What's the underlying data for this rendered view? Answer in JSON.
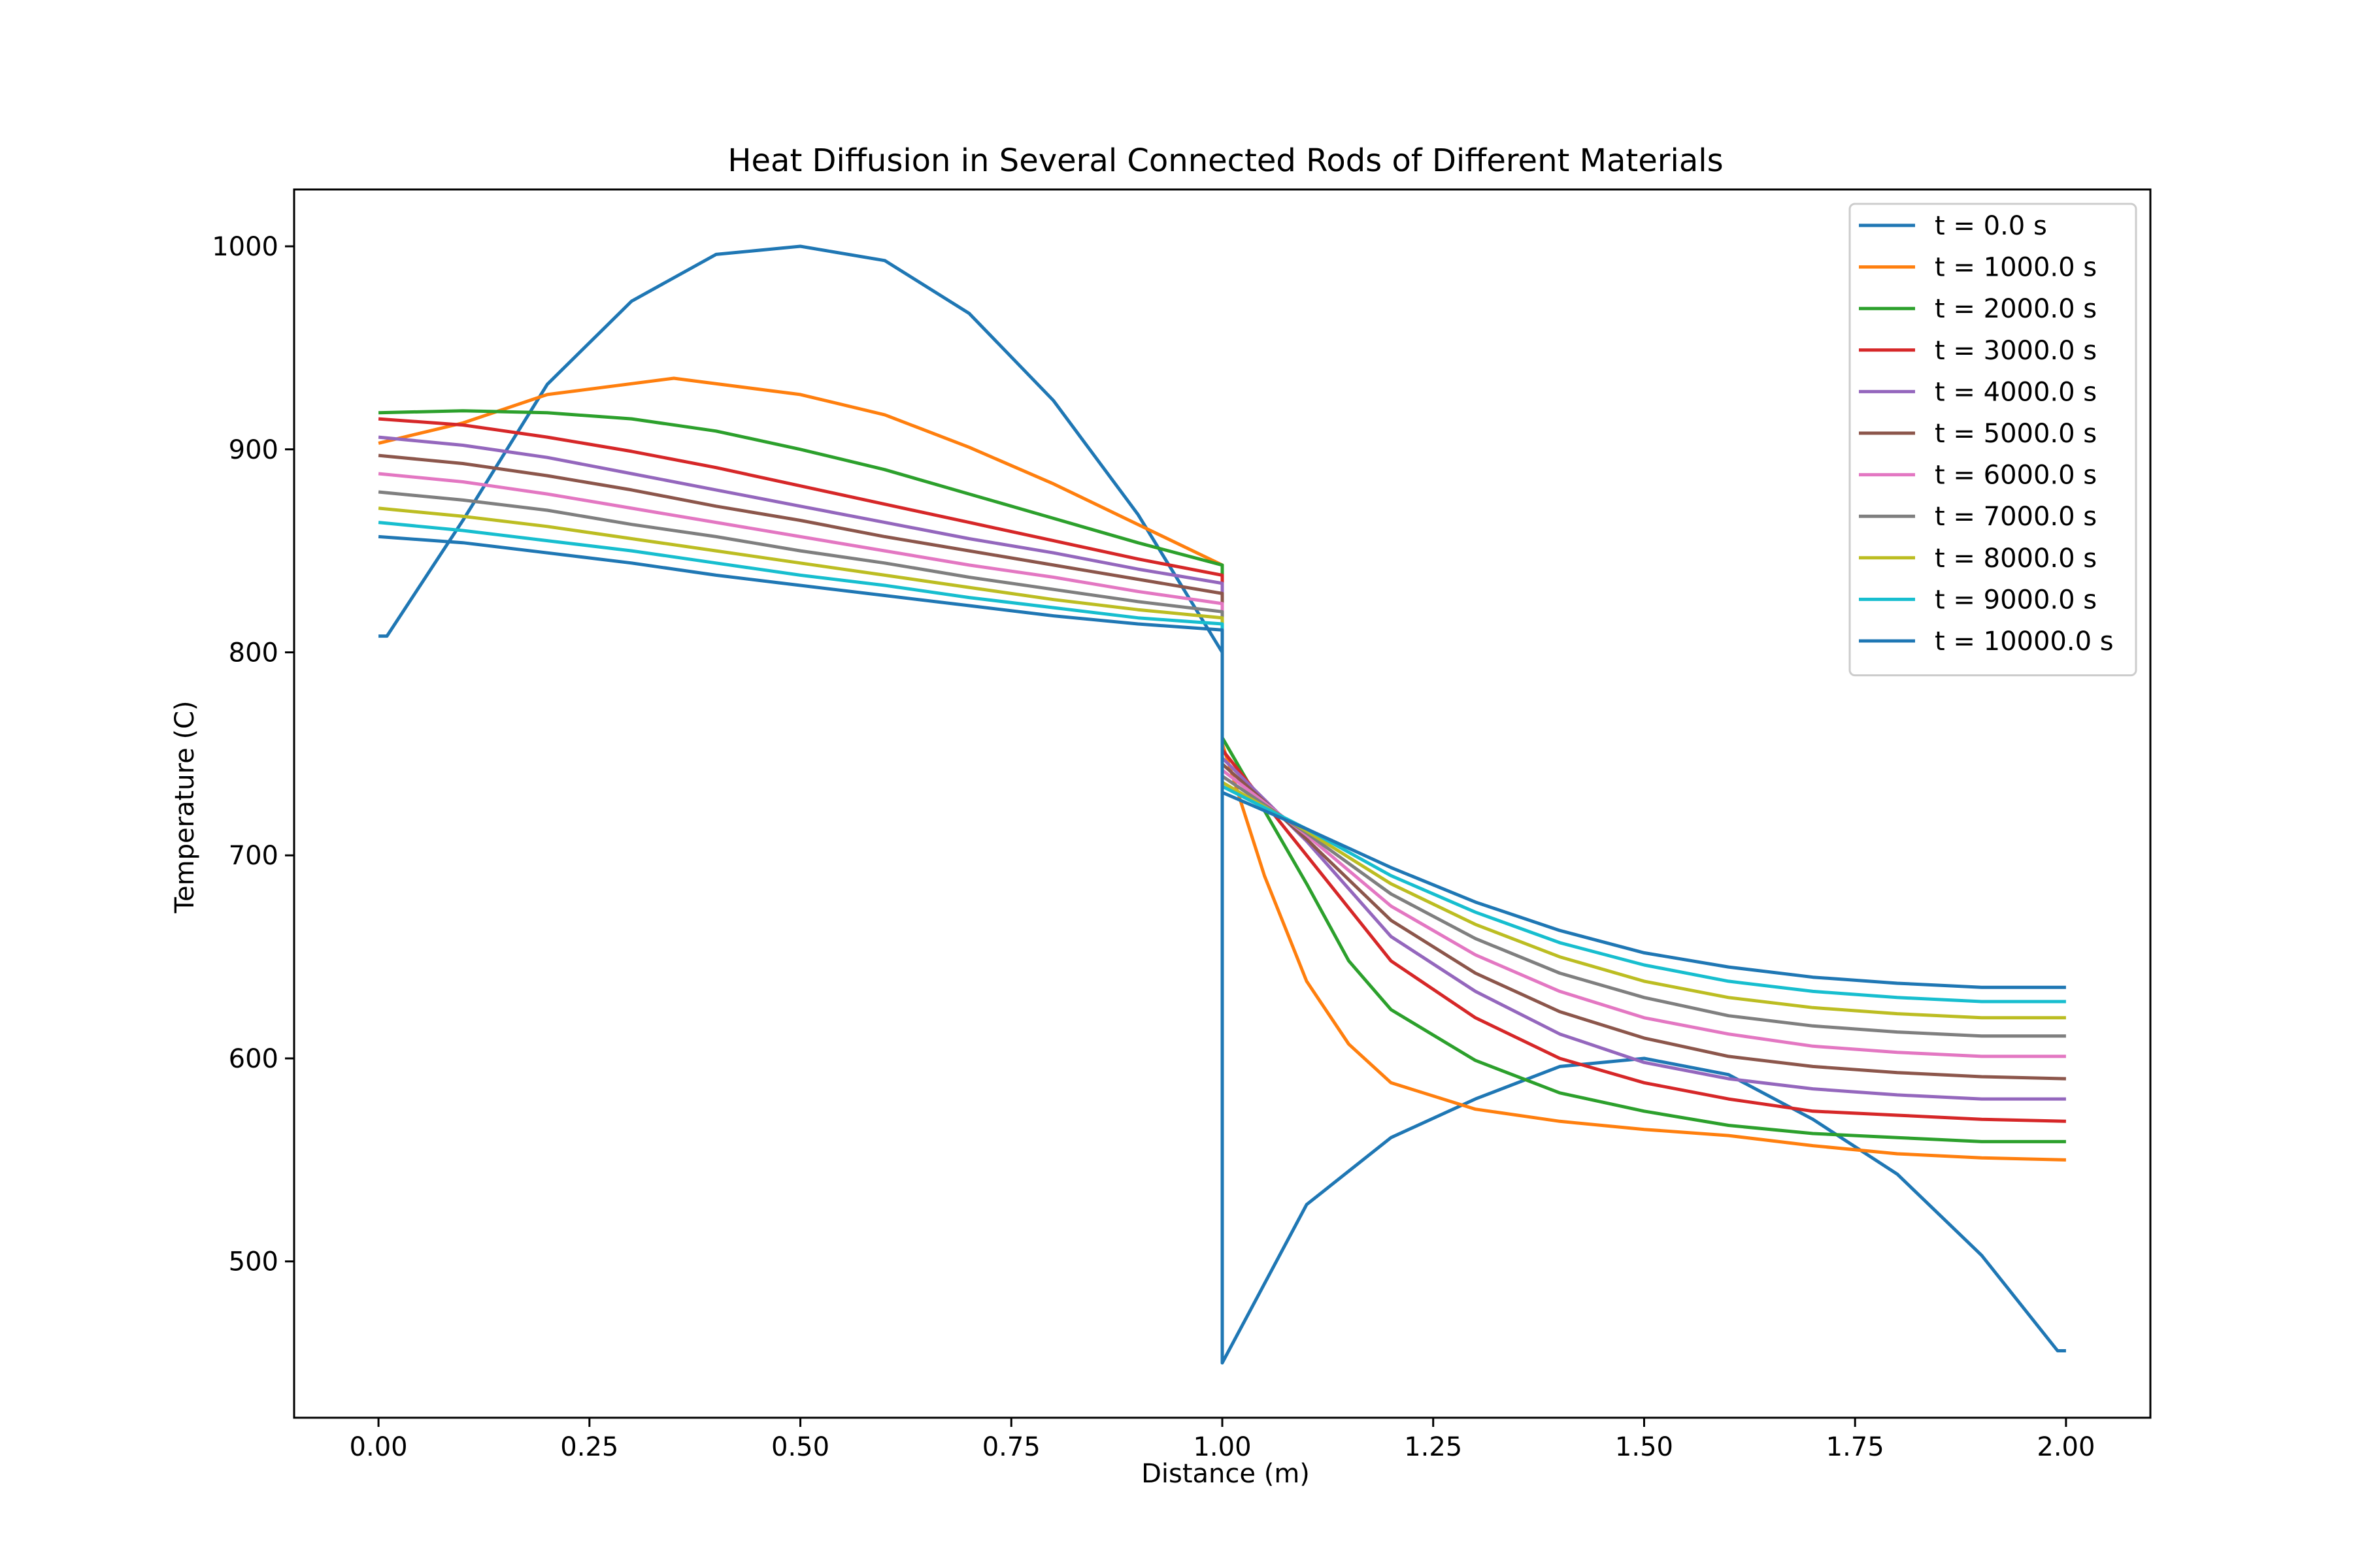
{
  "chart_data": {
    "type": "line",
    "title": "Heat Diffusion in Several Connected Rods of Different Materials",
    "xlabel": "Distance (m)",
    "ylabel": "Temperature (C)",
    "xlim": [
      -0.1,
      2.1
    ],
    "ylim": [
      423,
      1028
    ],
    "xticks": [
      0.0,
      0.25,
      0.5,
      0.75,
      1.0,
      1.25,
      1.5,
      1.75,
      2.0
    ],
    "xtick_labels": [
      "0.00",
      "0.25",
      "0.50",
      "0.75",
      "1.00",
      "1.25",
      "1.50",
      "1.75",
      "2.00"
    ],
    "yticks": [
      500,
      600,
      700,
      800,
      900,
      1000
    ],
    "ytick_labels": [
      "500",
      "600",
      "700",
      "800",
      "900",
      "1000"
    ],
    "grid": false,
    "legend_position": "top-right",
    "series": [
      {
        "name": "t = 0.0 s",
        "color": "#1f77b4",
        "points": [
          [
            0.0,
            808
          ],
          [
            0.01,
            808
          ],
          [
            0.1,
            865
          ],
          [
            0.2,
            932
          ],
          [
            0.3,
            973
          ],
          [
            0.4,
            996
          ],
          [
            0.5,
            1000
          ],
          [
            0.6,
            993
          ],
          [
            0.7,
            967
          ],
          [
            0.8,
            924
          ],
          [
            0.9,
            868
          ],
          [
            1.0,
            800
          ],
          [
            1.0,
            450
          ],
          [
            1.1,
            528
          ],
          [
            1.2,
            561
          ],
          [
            1.3,
            580
          ],
          [
            1.4,
            596
          ],
          [
            1.5,
            600
          ],
          [
            1.6,
            592
          ],
          [
            1.7,
            570
          ],
          [
            1.8,
            543
          ],
          [
            1.9,
            503
          ],
          [
            1.99,
            456
          ],
          [
            2.0,
            456
          ]
        ]
      },
      {
        "name": "t = 1000.0 s",
        "color": "#ff7f0e",
        "points": [
          [
            0.0,
            903
          ],
          [
            0.1,
            913
          ],
          [
            0.2,
            927
          ],
          [
            0.35,
            935
          ],
          [
            0.5,
            927
          ],
          [
            0.6,
            917
          ],
          [
            0.7,
            901
          ],
          [
            0.8,
            883
          ],
          [
            0.9,
            863
          ],
          [
            1.0,
            843
          ],
          [
            1.0,
            755
          ],
          [
            1.05,
            690
          ],
          [
            1.1,
            638
          ],
          [
            1.15,
            607
          ],
          [
            1.2,
            588
          ],
          [
            1.3,
            575
          ],
          [
            1.4,
            569
          ],
          [
            1.5,
            565
          ],
          [
            1.6,
            562
          ],
          [
            1.7,
            557
          ],
          [
            1.8,
            553
          ],
          [
            1.9,
            551
          ],
          [
            2.0,
            550
          ]
        ]
      },
      {
        "name": "t = 2000.0 s",
        "color": "#2ca02c",
        "points": [
          [
            0.0,
            918
          ],
          [
            0.1,
            919
          ],
          [
            0.2,
            918
          ],
          [
            0.3,
            915
          ],
          [
            0.4,
            909
          ],
          [
            0.5,
            900
          ],
          [
            0.6,
            890
          ],
          [
            0.7,
            878
          ],
          [
            0.8,
            866
          ],
          [
            0.9,
            854
          ],
          [
            1.0,
            843
          ],
          [
            1.0,
            758
          ],
          [
            1.1,
            686
          ],
          [
            1.15,
            648
          ],
          [
            1.2,
            624
          ],
          [
            1.3,
            599
          ],
          [
            1.4,
            583
          ],
          [
            1.5,
            574
          ],
          [
            1.6,
            567
          ],
          [
            1.7,
            563
          ],
          [
            1.8,
            561
          ],
          [
            1.9,
            559
          ],
          [
            2.0,
            559
          ]
        ]
      },
      {
        "name": "t = 3000.0 s",
        "color": "#d62728",
        "points": [
          [
            0.0,
            915
          ],
          [
            0.1,
            912
          ],
          [
            0.2,
            906
          ],
          [
            0.3,
            899
          ],
          [
            0.4,
            891
          ],
          [
            0.5,
            882
          ],
          [
            0.6,
            873
          ],
          [
            0.7,
            864
          ],
          [
            0.8,
            855
          ],
          [
            0.9,
            846
          ],
          [
            1.0,
            838
          ],
          [
            1.0,
            752
          ],
          [
            1.1,
            700
          ],
          [
            1.2,
            648
          ],
          [
            1.3,
            620
          ],
          [
            1.4,
            600
          ],
          [
            1.5,
            588
          ],
          [
            1.6,
            580
          ],
          [
            1.7,
            574
          ],
          [
            1.8,
            572
          ],
          [
            1.9,
            570
          ],
          [
            2.0,
            569
          ]
        ]
      },
      {
        "name": "t = 4000.0 s",
        "color": "#9467bd",
        "points": [
          [
            0.0,
            906
          ],
          [
            0.1,
            902
          ],
          [
            0.2,
            896
          ],
          [
            0.3,
            888
          ],
          [
            0.4,
            880
          ],
          [
            0.5,
            872
          ],
          [
            0.6,
            864
          ],
          [
            0.7,
            856
          ],
          [
            0.8,
            849
          ],
          [
            0.9,
            841
          ],
          [
            1.0,
            834
          ],
          [
            1.0,
            748
          ],
          [
            1.1,
            707
          ],
          [
            1.2,
            660
          ],
          [
            1.3,
            633
          ],
          [
            1.4,
            612
          ],
          [
            1.5,
            598
          ],
          [
            1.6,
            590
          ],
          [
            1.7,
            585
          ],
          [
            1.8,
            582
          ],
          [
            1.9,
            580
          ],
          [
            2.0,
            580
          ]
        ]
      },
      {
        "name": "t = 5000.0 s",
        "color": "#8c564b",
        "points": [
          [
            0.0,
            897
          ],
          [
            0.1,
            893
          ],
          [
            0.2,
            887
          ],
          [
            0.3,
            880
          ],
          [
            0.4,
            872
          ],
          [
            0.5,
            865
          ],
          [
            0.6,
            857
          ],
          [
            0.7,
            850
          ],
          [
            0.8,
            843
          ],
          [
            0.9,
            836
          ],
          [
            1.0,
            829
          ],
          [
            1.0,
            745
          ],
          [
            1.1,
            708
          ],
          [
            1.2,
            668
          ],
          [
            1.3,
            642
          ],
          [
            1.4,
            623
          ],
          [
            1.5,
            610
          ],
          [
            1.6,
            601
          ],
          [
            1.7,
            596
          ],
          [
            1.8,
            593
          ],
          [
            1.9,
            591
          ],
          [
            2.0,
            590
          ]
        ]
      },
      {
        "name": "t = 6000.0 s",
        "color": "#e377c2",
        "points": [
          [
            0.0,
            888
          ],
          [
            0.1,
            884
          ],
          [
            0.2,
            878
          ],
          [
            0.3,
            871
          ],
          [
            0.4,
            864
          ],
          [
            0.5,
            857
          ],
          [
            0.6,
            850
          ],
          [
            0.7,
            843
          ],
          [
            0.8,
            837
          ],
          [
            0.9,
            830
          ],
          [
            1.0,
            824
          ],
          [
            1.0,
            742
          ],
          [
            1.1,
            710
          ],
          [
            1.2,
            675
          ],
          [
            1.3,
            651
          ],
          [
            1.4,
            633
          ],
          [
            1.5,
            620
          ],
          [
            1.6,
            612
          ],
          [
            1.7,
            606
          ],
          [
            1.8,
            603
          ],
          [
            1.9,
            601
          ],
          [
            2.0,
            601
          ]
        ]
      },
      {
        "name": "t = 7000.0 s",
        "color": "#7f7f7f",
        "points": [
          [
            0.0,
            879
          ],
          [
            0.1,
            875
          ],
          [
            0.2,
            870
          ],
          [
            0.3,
            863
          ],
          [
            0.4,
            857
          ],
          [
            0.5,
            850
          ],
          [
            0.6,
            844
          ],
          [
            0.7,
            837
          ],
          [
            0.8,
            831
          ],
          [
            0.9,
            825
          ],
          [
            1.0,
            820
          ],
          [
            1.0,
            739
          ],
          [
            1.1,
            711
          ],
          [
            1.2,
            681
          ],
          [
            1.3,
            659
          ],
          [
            1.4,
            642
          ],
          [
            1.5,
            630
          ],
          [
            1.6,
            621
          ],
          [
            1.7,
            616
          ],
          [
            1.8,
            613
          ],
          [
            1.9,
            611
          ],
          [
            2.0,
            611
          ]
        ]
      },
      {
        "name": "t = 8000.0 s",
        "color": "#bcbd22",
        "points": [
          [
            0.0,
            871
          ],
          [
            0.1,
            867
          ],
          [
            0.2,
            862
          ],
          [
            0.3,
            856
          ],
          [
            0.4,
            850
          ],
          [
            0.5,
            844
          ],
          [
            0.6,
            838
          ],
          [
            0.7,
            832
          ],
          [
            0.8,
            826
          ],
          [
            0.9,
            821
          ],
          [
            1.0,
            817
          ],
          [
            1.0,
            736
          ],
          [
            1.1,
            712
          ],
          [
            1.2,
            686
          ],
          [
            1.3,
            666
          ],
          [
            1.4,
            650
          ],
          [
            1.5,
            638
          ],
          [
            1.6,
            630
          ],
          [
            1.7,
            625
          ],
          [
            1.8,
            622
          ],
          [
            1.9,
            620
          ],
          [
            2.0,
            620
          ]
        ]
      },
      {
        "name": "t = 9000.0 s",
        "color": "#17becf",
        "points": [
          [
            0.0,
            864
          ],
          [
            0.1,
            860
          ],
          [
            0.2,
            855
          ],
          [
            0.3,
            850
          ],
          [
            0.4,
            844
          ],
          [
            0.5,
            838
          ],
          [
            0.6,
            833
          ],
          [
            0.7,
            827
          ],
          [
            0.8,
            822
          ],
          [
            0.9,
            817
          ],
          [
            1.0,
            814
          ],
          [
            1.0,
            734
          ],
          [
            1.1,
            713
          ],
          [
            1.2,
            690
          ],
          [
            1.3,
            672
          ],
          [
            1.4,
            657
          ],
          [
            1.5,
            646
          ],
          [
            1.6,
            638
          ],
          [
            1.7,
            633
          ],
          [
            1.8,
            630
          ],
          [
            1.9,
            628
          ],
          [
            2.0,
            628
          ]
        ]
      },
      {
        "name": "t = 10000.0 s",
        "color": "#1f77b4",
        "points": [
          [
            0.0,
            857
          ],
          [
            0.1,
            854
          ],
          [
            0.2,
            849
          ],
          [
            0.3,
            844
          ],
          [
            0.4,
            838
          ],
          [
            0.5,
            833
          ],
          [
            0.6,
            828
          ],
          [
            0.7,
            823
          ],
          [
            0.8,
            818
          ],
          [
            0.9,
            814
          ],
          [
            1.0,
            811
          ],
          [
            1.0,
            731
          ],
          [
            1.1,
            713
          ],
          [
            1.2,
            694
          ],
          [
            1.3,
            677
          ],
          [
            1.4,
            663
          ],
          [
            1.5,
            652
          ],
          [
            1.6,
            645
          ],
          [
            1.7,
            640
          ],
          [
            1.8,
            637
          ],
          [
            1.9,
            635
          ],
          [
            2.0,
            635
          ]
        ]
      }
    ]
  }
}
